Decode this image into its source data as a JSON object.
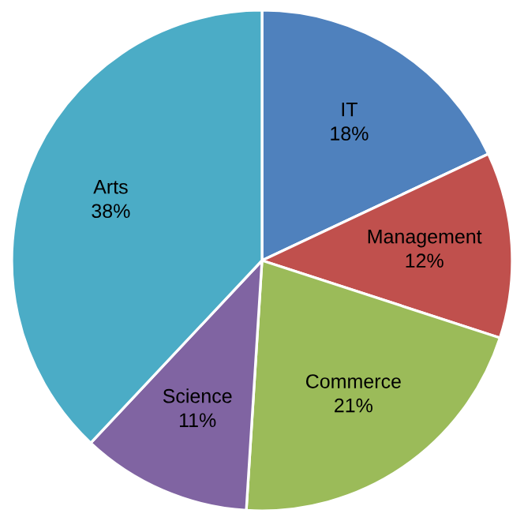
{
  "chart_data": {
    "type": "pie",
    "categories": [
      "IT",
      "Management",
      "Commerce",
      "Science",
      "Arts"
    ],
    "values": [
      18,
      12,
      21,
      11,
      38
    ],
    "value_labels": [
      "18%",
      "12%",
      "21%",
      "11%",
      "38%"
    ],
    "colors": [
      "#4f81bd",
      "#c0504d",
      "#9bbb59",
      "#8064a2",
      "#4bacc6"
    ]
  }
}
